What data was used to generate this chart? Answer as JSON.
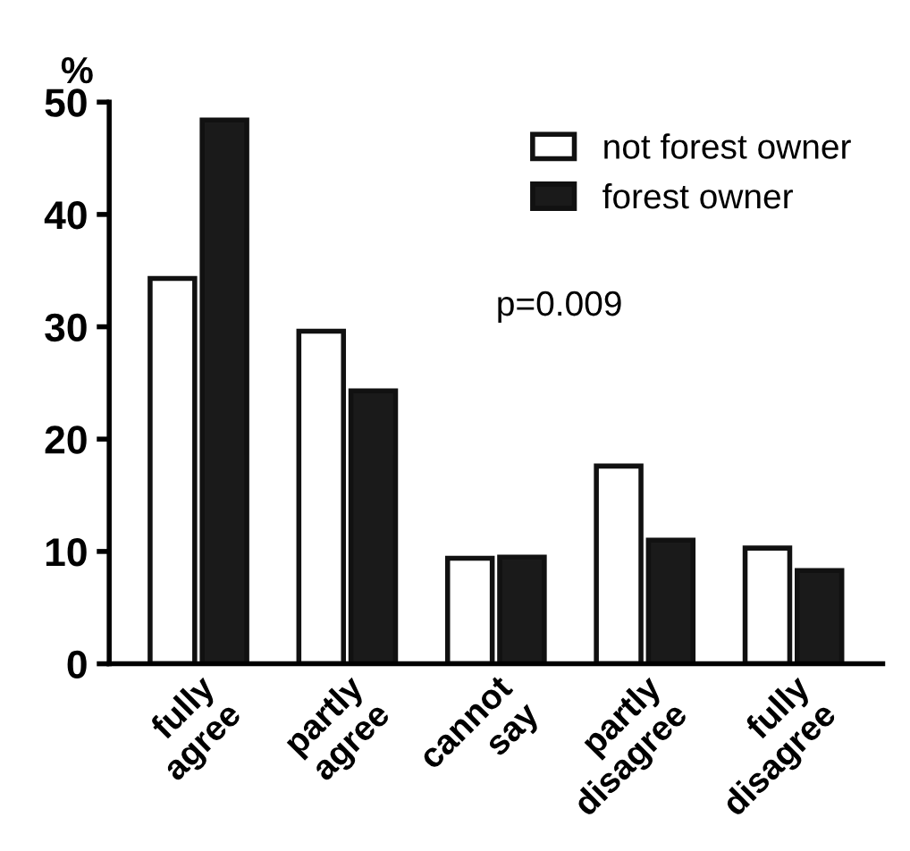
{
  "chart_data": {
    "type": "bar",
    "ylabel": "%",
    "categories": [
      "fully\nagree",
      "partly\nagree",
      "cannot\nsay",
      "partly\ndisagree",
      "fully\ndisagree"
    ],
    "series": [
      {
        "name": "not forest owner",
        "color": "#ffffff",
        "values": [
          34.3,
          29.6,
          9.4,
          17.6,
          10.3
        ]
      },
      {
        "name": "forest owner",
        "color": "#1a1a1a",
        "values": [
          48.4,
          24.3,
          9.5,
          11,
          8.3
        ]
      }
    ],
    "ylim": [
      0,
      50
    ],
    "yticks": [
      0,
      10,
      20,
      30,
      40,
      50
    ],
    "grid": false,
    "legend": "top right",
    "annotations": [
      "p=0.009"
    ]
  }
}
